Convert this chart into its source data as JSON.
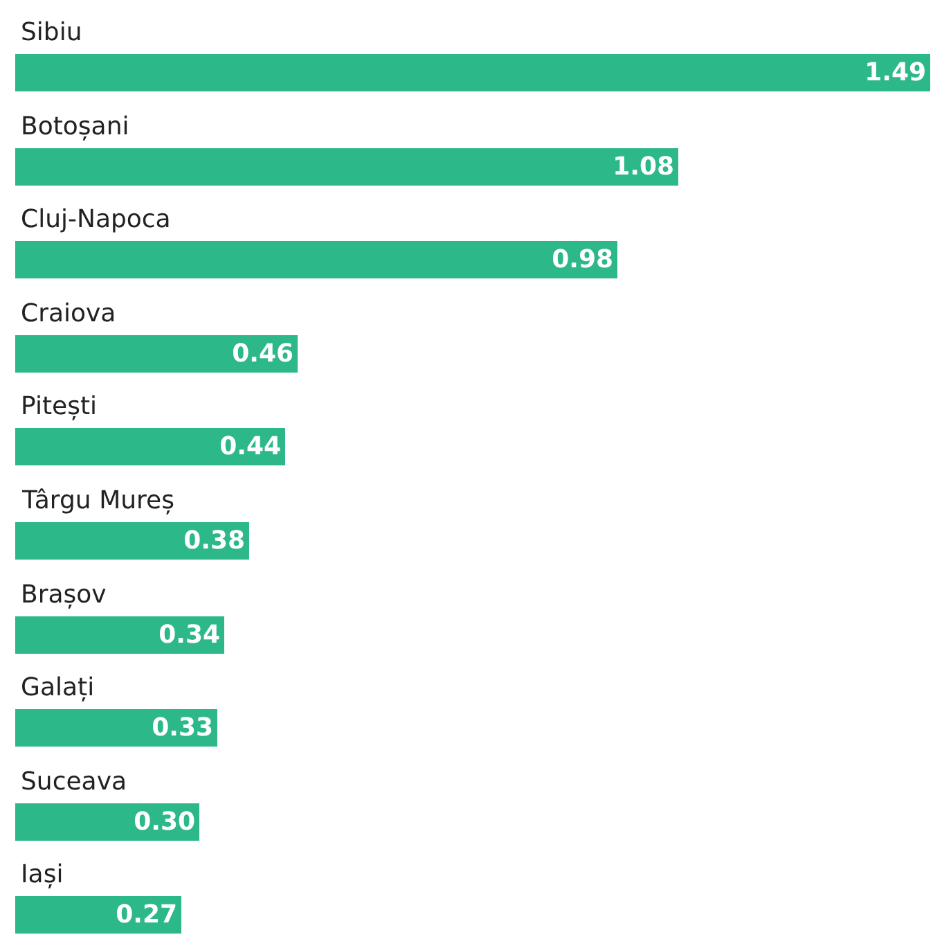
{
  "chart_data": {
    "type": "bar",
    "orientation": "horizontal",
    "categories": [
      "Sibiu",
      "Botoșani",
      "Cluj-Napoca",
      "Craiova",
      "Pitești",
      "Târgu Mureș",
      "Brașov",
      "Galați",
      "Suceava",
      "Iași"
    ],
    "values": [
      1.49,
      1.08,
      0.98,
      0.46,
      0.44,
      0.38,
      0.34,
      0.33,
      0.3,
      0.27
    ],
    "value_labels": [
      "1.49",
      "1.08",
      "0.98",
      "0.46",
      "0.44",
      "0.38",
      "0.34",
      "0.33",
      "0.30",
      "0.27"
    ],
    "color": "#2db88a",
    "xlim": [
      0,
      1.49
    ]
  }
}
